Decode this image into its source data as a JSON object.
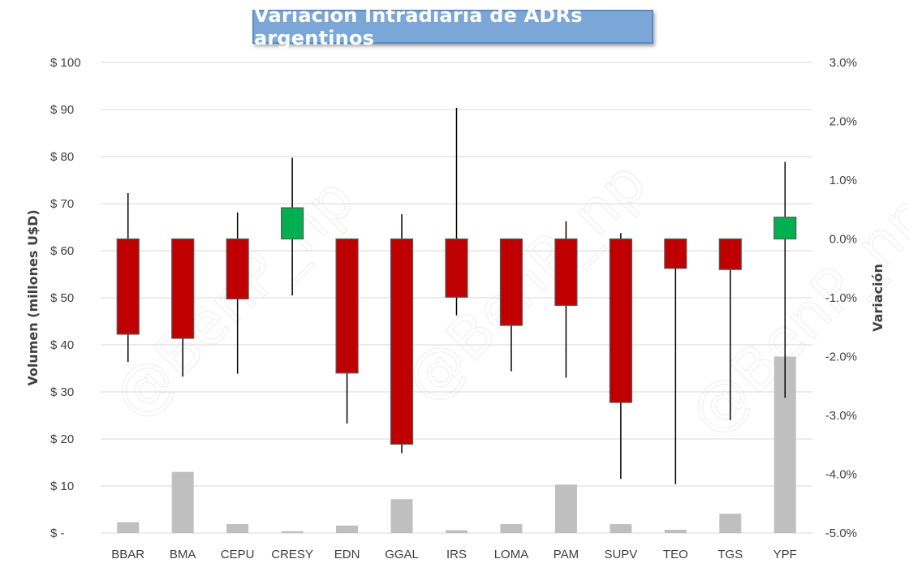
{
  "chart_data": {
    "type": "candlestick",
    "title": "Variación Intradiaria de ADRs argentinos",
    "ylabel_left": "Volumen (millones U$D)",
    "ylabel_right": "Variación",
    "left_axis": {
      "min": 0,
      "max": 100,
      "step": 10,
      "tick_labels": [
        "$ -",
        "$ 10",
        "$ 20",
        "$ 30",
        "$ 40",
        "$ 50",
        "$ 60",
        "$ 70",
        "$ 80",
        "$ 90",
        "$ 100"
      ]
    },
    "right_axis": {
      "min": -5.0,
      "max": 3.0,
      "step": 1.0,
      "tick_labels": [
        "-5.0%",
        "-4.0%",
        "-3.0%",
        "-2.0%",
        "-1.0%",
        "0.0%",
        "1.0%",
        "2.0%",
        "3.0%"
      ]
    },
    "grid": true,
    "legend": "none",
    "watermark": "@BenP_np",
    "colors": {
      "down": "#c00000",
      "up": "#00b050",
      "volume": "#bfbfbf",
      "grid": "#d9d9d9",
      "wick": "#000000",
      "candle_border": "#595959"
    },
    "categories": [
      "BBAR",
      "BMA",
      "CEPU",
      "CRESY",
      "EDN",
      "GGAL",
      "IRS",
      "LOMA",
      "PAM",
      "SUPV",
      "TEO",
      "TGS",
      "YPF"
    ],
    "series": [
      {
        "name": "Volumen",
        "type": "bar",
        "values": [
          2.3,
          13.0,
          1.9,
          0.4,
          1.6,
          7.2,
          0.6,
          1.9,
          10.3,
          1.9,
          0.7,
          4.1,
          37.5
        ]
      },
      {
        "name": "Variación",
        "type": "candlestick",
        "open": [
          0.0,
          0.0,
          0.0,
          0.0,
          0.0,
          0.0,
          0.0,
          0.0,
          0.0,
          0.0,
          0.0,
          0.0,
          0.0
        ],
        "close": [
          -1.62,
          -1.69,
          -1.02,
          0.53,
          -2.28,
          -3.49,
          -0.99,
          -1.47,
          -1.13,
          -2.78,
          -0.5,
          -0.52,
          0.37
        ],
        "high": [
          0.78,
          0.0,
          0.45,
          1.38,
          0.0,
          0.42,
          2.23,
          0.0,
          0.3,
          0.1,
          0.0,
          0.0,
          1.31
        ],
        "low": [
          -2.09,
          -2.34,
          -2.29,
          -0.96,
          -3.14,
          -3.64,
          -1.3,
          -2.25,
          -2.36,
          -4.08,
          -4.17,
          -3.08,
          -2.7
        ]
      }
    ]
  }
}
